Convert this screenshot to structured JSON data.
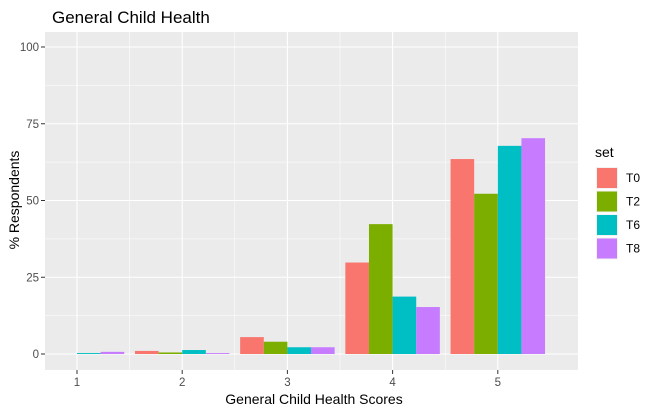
{
  "chart_data": {
    "type": "bar",
    "title": "General Child Health",
    "xlabel": "General Child Health Scores",
    "ylabel": "% Respondents",
    "categories": [
      "1",
      "2",
      "3",
      "4",
      "5"
    ],
    "ylim": [
      0,
      100
    ],
    "yticks": [
      0,
      25,
      50,
      75,
      100
    ],
    "grid": true,
    "legend": {
      "title": "set",
      "position": "right"
    },
    "series": [
      {
        "name": "T0",
        "color": "#F8766D",
        "values": [
          0,
          1.0,
          5.5,
          29.8,
          63.5
        ]
      },
      {
        "name": "T2",
        "color": "#7CAE00",
        "values": [
          0,
          0.5,
          4.0,
          42.3,
          52.2
        ]
      },
      {
        "name": "T6",
        "color": "#00BFC4",
        "values": [
          0.3,
          1.3,
          2.2,
          18.7,
          67.8
        ]
      },
      {
        "name": "T8",
        "color": "#C77CFF",
        "values": [
          0.7,
          0.3,
          2.2,
          15.3,
          70.3
        ]
      }
    ]
  }
}
